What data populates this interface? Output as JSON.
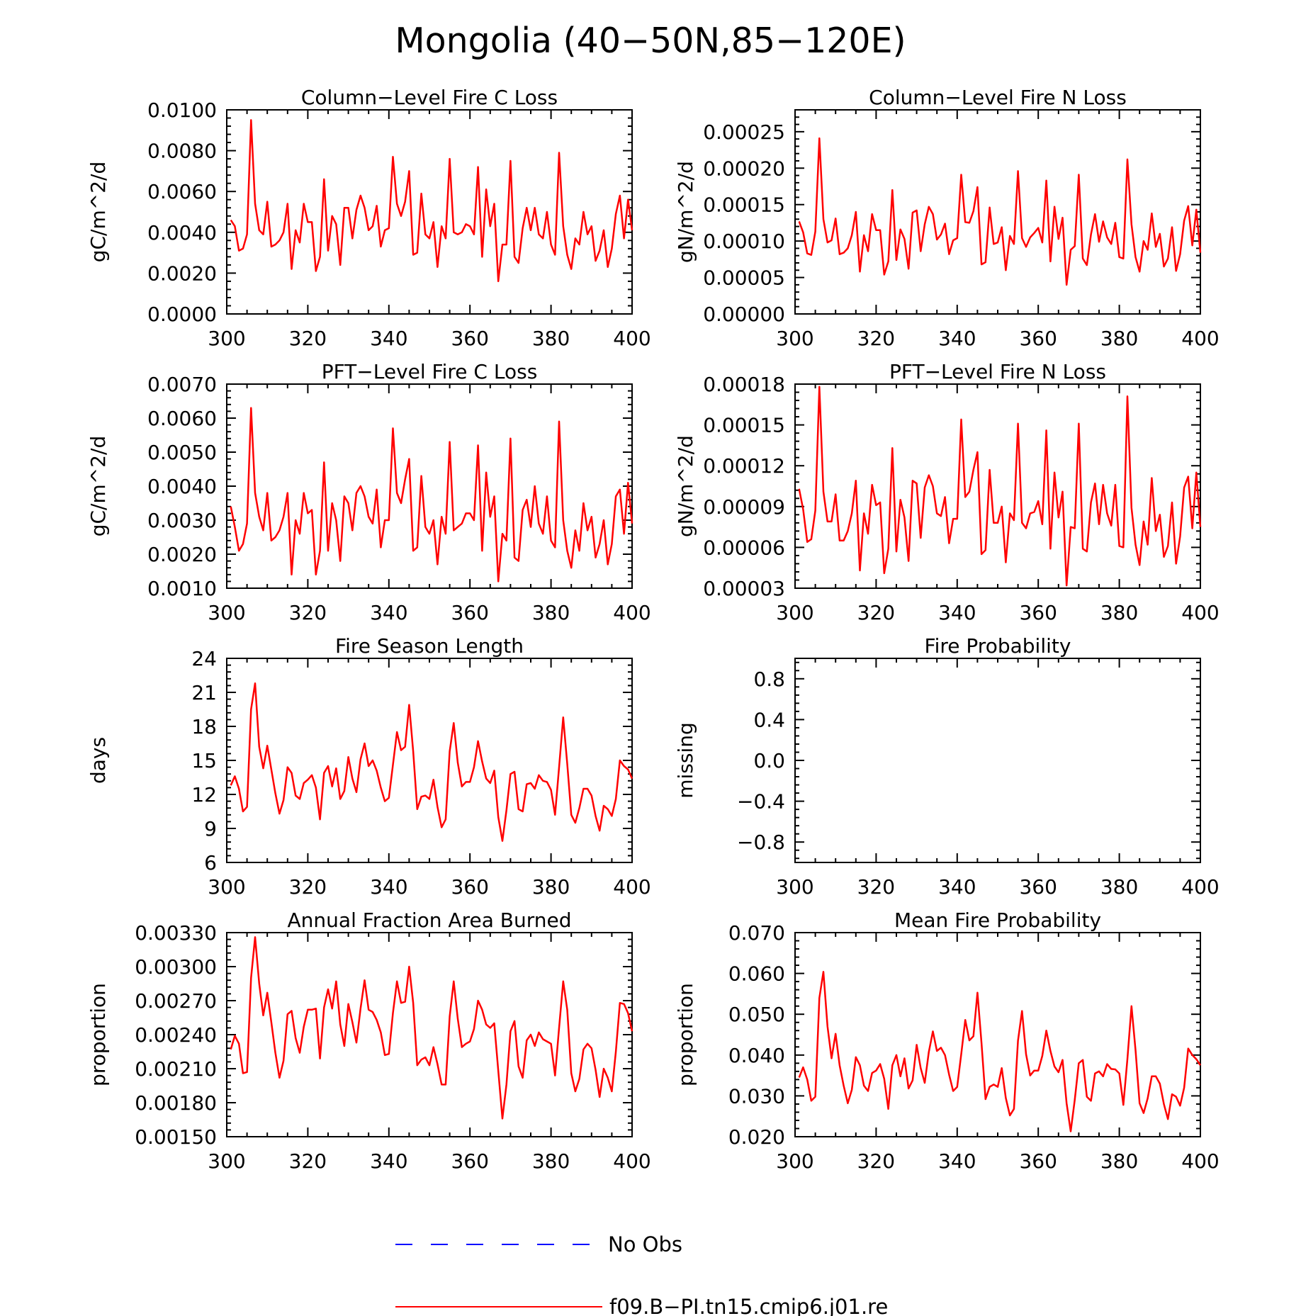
{
  "title": "Mongolia (40−50N,85−120E)",
  "legend": {
    "items": [
      {
        "label": "No Obs",
        "color": "#0000ff",
        "dash": true
      },
      {
        "label": "f09.B−PI.tn15.cmip6.j01.re",
        "color": "#ff0000",
        "dash": false
      }
    ]
  },
  "colors": {
    "series": "#ff0000",
    "axes": "#000000",
    "obs": "#0000ff"
  },
  "chart_data": [
    {
      "type": "line",
      "title": "Column−Level Fire C Loss",
      "ylabel": "gC/m^2/d",
      "xlim": [
        300,
        400
      ],
      "ylim": [
        0,
        0.01
      ],
      "xticks": [
        "300",
        "320",
        "340",
        "360",
        "380",
        "400"
      ],
      "yticks": [
        "0.0000",
        "0.0020",
        "0.0040",
        "0.0060",
        "0.0080",
        "0.0100"
      ],
      "x_start": 301,
      "series": [
        {
          "name": "f09.B−PI.tn15.cmip6.j01.re",
          "values": [
            0.0046,
            0.0043,
            0.0031,
            0.0032,
            0.0039,
            0.0095,
            0.0054,
            0.0041,
            0.0039,
            0.0055,
            0.0033,
            0.0034,
            0.0036,
            0.004,
            0.0054,
            0.0022,
            0.0041,
            0.0035,
            0.0054,
            0.0045,
            0.0045,
            0.0021,
            0.0028,
            0.0066,
            0.0031,
            0.0048,
            0.0044,
            0.0024,
            0.0052,
            0.0052,
            0.0037,
            0.0051,
            0.0058,
            0.0052,
            0.0041,
            0.0043,
            0.0053,
            0.0033,
            0.0041,
            0.0042,
            0.0077,
            0.0054,
            0.0048,
            0.0055,
            0.007,
            0.0029,
            0.003,
            0.0059,
            0.0039,
            0.0037,
            0.0045,
            0.0023,
            0.0043,
            0.0037,
            0.0076,
            0.004,
            0.0039,
            0.004,
            0.0044,
            0.0043,
            0.0039,
            0.0072,
            0.0028,
            0.0061,
            0.0043,
            0.0054,
            0.0016,
            0.0034,
            0.0034,
            0.0075,
            0.0028,
            0.0025,
            0.0042,
            0.0052,
            0.0041,
            0.0052,
            0.0039,
            0.0037,
            0.005,
            0.0034,
            0.0029,
            0.0079,
            0.0043,
            0.0029,
            0.0022,
            0.0037,
            0.0034,
            0.005,
            0.0039,
            0.0043,
            0.0026,
            0.0031,
            0.0041,
            0.0023,
            0.0032,
            0.0049,
            0.0058,
            0.0037,
            0.0056,
            0.0041
          ]
        }
      ]
    },
    {
      "type": "line",
      "title": "Column−Level Fire N Loss",
      "ylabel": "gN/m^2/d",
      "xlim": [
        300,
        400
      ],
      "ylim": [
        0,
        0.00028
      ],
      "xticks": [
        "300",
        "320",
        "340",
        "360",
        "380",
        "400"
      ],
      "yticks": [
        "0.00000",
        "0.00005",
        "0.00010",
        "0.00015",
        "0.00020",
        "0.00025"
      ],
      "x_start": 301,
      "series": [
        {
          "name": "f09.B−PI.tn15.cmip6.j01.re",
          "values": [
            0.000127,
            0.000112,
            8.3e-05,
            8.1e-05,
            0.000113,
            0.000241,
            0.00013,
            9.8e-05,
            0.000101,
            0.000131,
            8.2e-05,
            8.4e-05,
            9e-05,
            0.000108,
            0.00014,
            5.8e-05,
            0.000108,
            8.6e-05,
            0.000137,
            0.000115,
            0.000115,
            5.4e-05,
            7.2e-05,
            0.00017,
            7.4e-05,
            0.000116,
            0.000103,
            6.2e-05,
            0.000139,
            0.000142,
            8.6e-05,
            0.000123,
            0.000147,
            0.000137,
            0.000102,
            0.000109,
            0.000124,
            8.2e-05,
            0.000101,
            0.000104,
            0.000191,
            0.000126,
            0.000125,
            0.000141,
            0.000174,
            6.8e-05,
            7.1e-05,
            0.000146,
            9.6e-05,
            9.8e-05,
            0.000119,
            6e-05,
            0.000107,
            9.6e-05,
            0.000196,
            0.000104,
            9.2e-05,
            0.000105,
            0.000111,
            0.000118,
            9.8e-05,
            0.000183,
            7.2e-05,
            0.000147,
            0.000103,
            0.000132,
            4e-05,
            8.8e-05,
            9.3e-05,
            0.000191,
            7.6e-05,
            6.7e-05,
            0.000109,
            0.000137,
            9.9e-05,
            0.000127,
            0.000105,
            9.6e-05,
            0.000125,
            7.8e-05,
            7.6e-05,
            0.000212,
            0.000123,
            7.8e-05,
            5.8e-05,
            0.0001,
            8.8e-05,
            0.000138,
            9.2e-05,
            0.00011,
            6.5e-05,
            7.6e-05,
            0.000119,
            5.9e-05,
            8.2e-05,
            0.000128,
            0.000148,
            9.4e-05,
            0.000143,
            8.4e-05
          ]
        }
      ]
    },
    {
      "type": "line",
      "title": "PFT−Level Fire C Loss",
      "ylabel": "gC/m^2/d",
      "xlim": [
        300,
        400
      ],
      "ylim": [
        0.001,
        0.007
      ],
      "xticks": [
        "300",
        "320",
        "340",
        "360",
        "380",
        "400"
      ],
      "yticks": [
        "0.0010",
        "0.0020",
        "0.0030",
        "0.0040",
        "0.0050",
        "0.0060",
        "0.0070"
      ],
      "x_start": 301,
      "series": [
        {
          "name": "f09.B−PI.tn15.cmip6.j01.re",
          "values": [
            0.0034,
            0.0028,
            0.0021,
            0.0023,
            0.0029,
            0.0063,
            0.0038,
            0.0031,
            0.0027,
            0.0038,
            0.0024,
            0.0025,
            0.0027,
            0.0031,
            0.0038,
            0.0014,
            0.003,
            0.0026,
            0.0038,
            0.0032,
            0.0033,
            0.0014,
            0.0021,
            0.0047,
            0.0021,
            0.0035,
            0.003,
            0.0018,
            0.0037,
            0.0035,
            0.0027,
            0.0038,
            0.004,
            0.0037,
            0.0031,
            0.0029,
            0.0039,
            0.0022,
            0.003,
            0.003,
            0.0057,
            0.0038,
            0.0035,
            0.0042,
            0.0048,
            0.0021,
            0.0022,
            0.0043,
            0.0028,
            0.0026,
            0.003,
            0.0017,
            0.0031,
            0.0026,
            0.0053,
            0.0027,
            0.0028,
            0.0029,
            0.0032,
            0.0032,
            0.003,
            0.0052,
            0.0021,
            0.0044,
            0.0031,
            0.0037,
            0.0012,
            0.0026,
            0.0024,
            0.0054,
            0.0019,
            0.0018,
            0.0033,
            0.0036,
            0.0028,
            0.004,
            0.0029,
            0.0026,
            0.0037,
            0.0024,
            0.0022,
            0.0059,
            0.003,
            0.0021,
            0.0016,
            0.0027,
            0.0021,
            0.0035,
            0.0027,
            0.0031,
            0.0019,
            0.0023,
            0.003,
            0.0017,
            0.0023,
            0.0037,
            0.0039,
            0.0026,
            0.0041,
            0.0029
          ]
        }
      ]
    },
    {
      "type": "line",
      "title": "PFT−Level Fire N Loss",
      "ylabel": "gN/m^2/d",
      "xlim": [
        300,
        400
      ],
      "ylim": [
        3e-05,
        0.00018
      ],
      "xticks": [
        "300",
        "320",
        "340",
        "360",
        "380",
        "400"
      ],
      "yticks": [
        "0.00003",
        "0.00006",
        "0.00009",
        "0.00012",
        "0.00015",
        "0.00018"
      ],
      "x_start": 301,
      "series": [
        {
          "name": "f09.B−PI.tn15.cmip6.j01.re",
          "values": [
            0.000103,
            8.8e-05,
            6.4e-05,
            6.6e-05,
            8.7e-05,
            0.000178,
            0.000101,
            7.9e-05,
            7.9e-05,
            9.9e-05,
            6.5e-05,
            6.5e-05,
            7.2e-05,
            8.5e-05,
            0.000109,
            4.3e-05,
            8.5e-05,
            7e-05,
            0.000106,
            9.1e-05,
            9.3e-05,
            4.1e-05,
            5.9e-05,
            0.000133,
            5.7e-05,
            9.5e-05,
            8.2e-05,
            5e-05,
            0.000109,
            0.000107,
            6.7e-05,
            0.000104,
            0.000113,
            0.000105,
            8.5e-05,
            8.3e-05,
            9.7e-05,
            6.3e-05,
            8.1e-05,
            8.1e-05,
            0.000154,
            9.7e-05,
            0.000101,
            0.000117,
            0.00013,
            5.5e-05,
            5.8e-05,
            0.000117,
            7.8e-05,
            7.8e-05,
            9e-05,
            4.9e-05,
            8.5e-05,
            8e-05,
            0.000151,
            7.8e-05,
            7.4e-05,
            8.5e-05,
            8.6e-05,
            9.4e-05,
            7.7e-05,
            0.000146,
            5.9e-05,
            0.000115,
            8.2e-05,
            0.000101,
            3.2e-05,
            7.5e-05,
            7.4e-05,
            0.000151,
            5.9e-05,
            5.7e-05,
            9.3e-05,
            0.000107,
            7.7e-05,
            0.000106,
            8.5e-05,
            7.6e-05,
            0.000106,
            6.1e-05,
            6e-05,
            0.000171,
            8.9e-05,
            6.2e-05,
            4.7e-05,
            7.9e-05,
            6.2e-05,
            0.000111,
            7.2e-05,
            8.4e-05,
            5.3e-05,
            6.1e-05,
            9.3e-05,
            4.8e-05,
            6.8e-05,
            0.000104,
            0.000112,
            7.4e-05,
            0.000115,
            7.5e-05
          ]
        }
      ]
    },
    {
      "type": "line",
      "title": "Fire Season Length",
      "ylabel": "days",
      "xlim": [
        300,
        400
      ],
      "ylim": [
        6,
        24
      ],
      "xticks": [
        "300",
        "320",
        "340",
        "360",
        "380",
        "400"
      ],
      "yticks": [
        "6",
        "9",
        "12",
        "15",
        "18",
        "21",
        "24"
      ],
      "x_start": 301,
      "series": [
        {
          "name": "f09.B−PI.tn15.cmip6.j01.re",
          "values": [
            12.8,
            13.6,
            12.5,
            10.5,
            10.9,
            19.5,
            21.8,
            16.2,
            14.3,
            16.3,
            14.2,
            12.1,
            10.3,
            11.5,
            14.4,
            13.9,
            11.9,
            11.6,
            13.0,
            13.3,
            13.7,
            12.6,
            9.8,
            13.9,
            14.5,
            12.7,
            14.3,
            11.6,
            12.3,
            15.3,
            13.4,
            12.2,
            15.1,
            16.5,
            14.5,
            15.0,
            14.1,
            12.6,
            11.4,
            11.7,
            14.6,
            17.5,
            15.9,
            16.2,
            19.9,
            15.8,
            10.7,
            11.8,
            11.9,
            11.6,
            13.3,
            10.9,
            9.1,
            9.8,
            15.8,
            18.3,
            14.8,
            12.7,
            13.1,
            13.1,
            14.4,
            16.7,
            14.9,
            13.4,
            13.0,
            14.1,
            10.0,
            7.9,
            10.6,
            13.8,
            14.0,
            10.7,
            10.5,
            12.9,
            13.0,
            12.5,
            13.7,
            13.2,
            13.1,
            12.4,
            10.2,
            14.4,
            18.8,
            14.7,
            10.2,
            9.5,
            10.8,
            12.5,
            12.5,
            11.9,
            10.1,
            8.8,
            11.0,
            10.7,
            10.1,
            11.6,
            15.0,
            14.5,
            14.2,
            13.4
          ]
        }
      ]
    },
    {
      "type": "line",
      "title": "Fire Probability",
      "ylabel": "missing",
      "xlim": [
        300,
        400
      ],
      "ylim": [
        -1,
        1
      ],
      "xticks": [
        "300",
        "320",
        "340",
        "360",
        "380",
        "400"
      ],
      "yticks": [
        "−0.8",
        "−0.4",
        "0.0",
        "0.4",
        "0.8"
      ],
      "x_start": 301,
      "series": []
    },
    {
      "type": "line",
      "title": "Annual Fraction Area Burned",
      "ylabel": "proportion",
      "xlim": [
        300,
        400
      ],
      "ylim": [
        0.0015,
        0.0033
      ],
      "xticks": [
        "300",
        "320",
        "340",
        "360",
        "380",
        "400"
      ],
      "yticks": [
        "0.00150",
        "0.00180",
        "0.00210",
        "0.00240",
        "0.00270",
        "0.00300",
        "0.00330"
      ],
      "x_start": 301,
      "series": [
        {
          "name": "f09.B−PI.tn15.cmip6.j01.re",
          "values": [
            0.00227,
            0.00239,
            0.00232,
            0.00206,
            0.00207,
            0.0029,
            0.00326,
            0.00285,
            0.00257,
            0.00277,
            0.00251,
            0.00224,
            0.00202,
            0.00217,
            0.00258,
            0.00261,
            0.00237,
            0.00224,
            0.00247,
            0.00262,
            0.00262,
            0.00263,
            0.00219,
            0.00264,
            0.0028,
            0.00263,
            0.00287,
            0.00249,
            0.0023,
            0.00267,
            0.00251,
            0.00233,
            0.00263,
            0.00288,
            0.00262,
            0.0026,
            0.00253,
            0.00242,
            0.00222,
            0.00223,
            0.00259,
            0.00287,
            0.00268,
            0.00269,
            0.003,
            0.00268,
            0.00213,
            0.00218,
            0.0022,
            0.00213,
            0.00229,
            0.00214,
            0.00196,
            0.00196,
            0.00256,
            0.00287,
            0.00254,
            0.00229,
            0.00232,
            0.00234,
            0.00245,
            0.0027,
            0.00262,
            0.00249,
            0.00246,
            0.0025,
            0.00208,
            0.00166,
            0.00196,
            0.00243,
            0.00252,
            0.00212,
            0.00202,
            0.00235,
            0.0024,
            0.0023,
            0.00242,
            0.00236,
            0.00234,
            0.00232,
            0.00204,
            0.00246,
            0.00287,
            0.00262,
            0.00206,
            0.0019,
            0.00201,
            0.00227,
            0.00232,
            0.00228,
            0.00209,
            0.00185,
            0.0021,
            0.00202,
            0.0019,
            0.00225,
            0.00268,
            0.00267,
            0.00259,
            0.00243
          ]
        }
      ]
    },
    {
      "type": "line",
      "title": "Mean Fire Probability",
      "ylabel": "proportion",
      "xlim": [
        300,
        400
      ],
      "ylim": [
        0.02,
        0.07
      ],
      "xticks": [
        "300",
        "320",
        "340",
        "360",
        "380",
        "400"
      ],
      "yticks": [
        "0.020",
        "0.030",
        "0.040",
        "0.050",
        "0.060",
        "0.070"
      ],
      "x_start": 301,
      "series": [
        {
          "name": "f09.B−PI.tn15.cmip6.j01.re",
          "values": [
            0.0345,
            0.037,
            0.034,
            0.0288,
            0.0298,
            0.054,
            0.0604,
            0.047,
            0.0392,
            0.0452,
            0.0375,
            0.0325,
            0.0282,
            0.0315,
            0.0395,
            0.0375,
            0.0325,
            0.0312,
            0.0356,
            0.0362,
            0.0378,
            0.0342,
            0.0268,
            0.0375,
            0.04,
            0.0348,
            0.0392,
            0.0318,
            0.0338,
            0.0425,
            0.0368,
            0.0332,
            0.0408,
            0.0458,
            0.041,
            0.0418,
            0.04,
            0.0352,
            0.0312,
            0.0322,
            0.0402,
            0.0486,
            0.0436,
            0.0446,
            0.0553,
            0.043,
            0.0292,
            0.0322,
            0.0328,
            0.0322,
            0.0368,
            0.0295,
            0.0252,
            0.0268,
            0.0435,
            0.0508,
            0.0402,
            0.035,
            0.0362,
            0.0362,
            0.0398,
            0.046,
            0.041,
            0.0372,
            0.0358,
            0.0388,
            0.0282,
            0.0213,
            0.029,
            0.038,
            0.0388,
            0.0298,
            0.0288,
            0.0355,
            0.036,
            0.0348,
            0.0378,
            0.0366,
            0.0365,
            0.0355,
            0.0278,
            0.039,
            0.052,
            0.0412,
            0.0282,
            0.0258,
            0.0294,
            0.0348,
            0.0348,
            0.033,
            0.028,
            0.0243,
            0.0304,
            0.0298,
            0.0276,
            0.032,
            0.0416,
            0.04,
            0.039,
            0.0375
          ]
        }
      ]
    }
  ]
}
